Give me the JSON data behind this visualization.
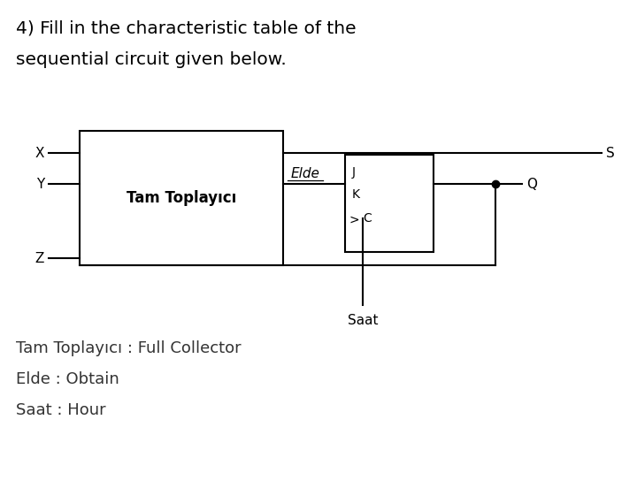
{
  "title_line1": "4) Fill in the characteristic table of the",
  "title_line2": "sequential circuit given below.",
  "bg_color": "#ffffff",
  "text_color": "#000000",
  "title_fontsize": 14.5,
  "label_fontsize": 11,
  "small_fontsize": 9,
  "tam_toplayici_label": "Tam Toplayıcı",
  "elde_label": "Elde",
  "saat_label": "Saat",
  "s_label": "S",
  "q_label": "Q",
  "x_label": "X",
  "y_label": "Y",
  "z_label": "Z",
  "j_label": "J",
  "k_label": "K",
  "c_label": "C",
  "footnote1": "Tam Toplayıcı : Full Collector",
  "footnote2": "Elde : Obtain",
  "footnote3": "Saat : Hour"
}
